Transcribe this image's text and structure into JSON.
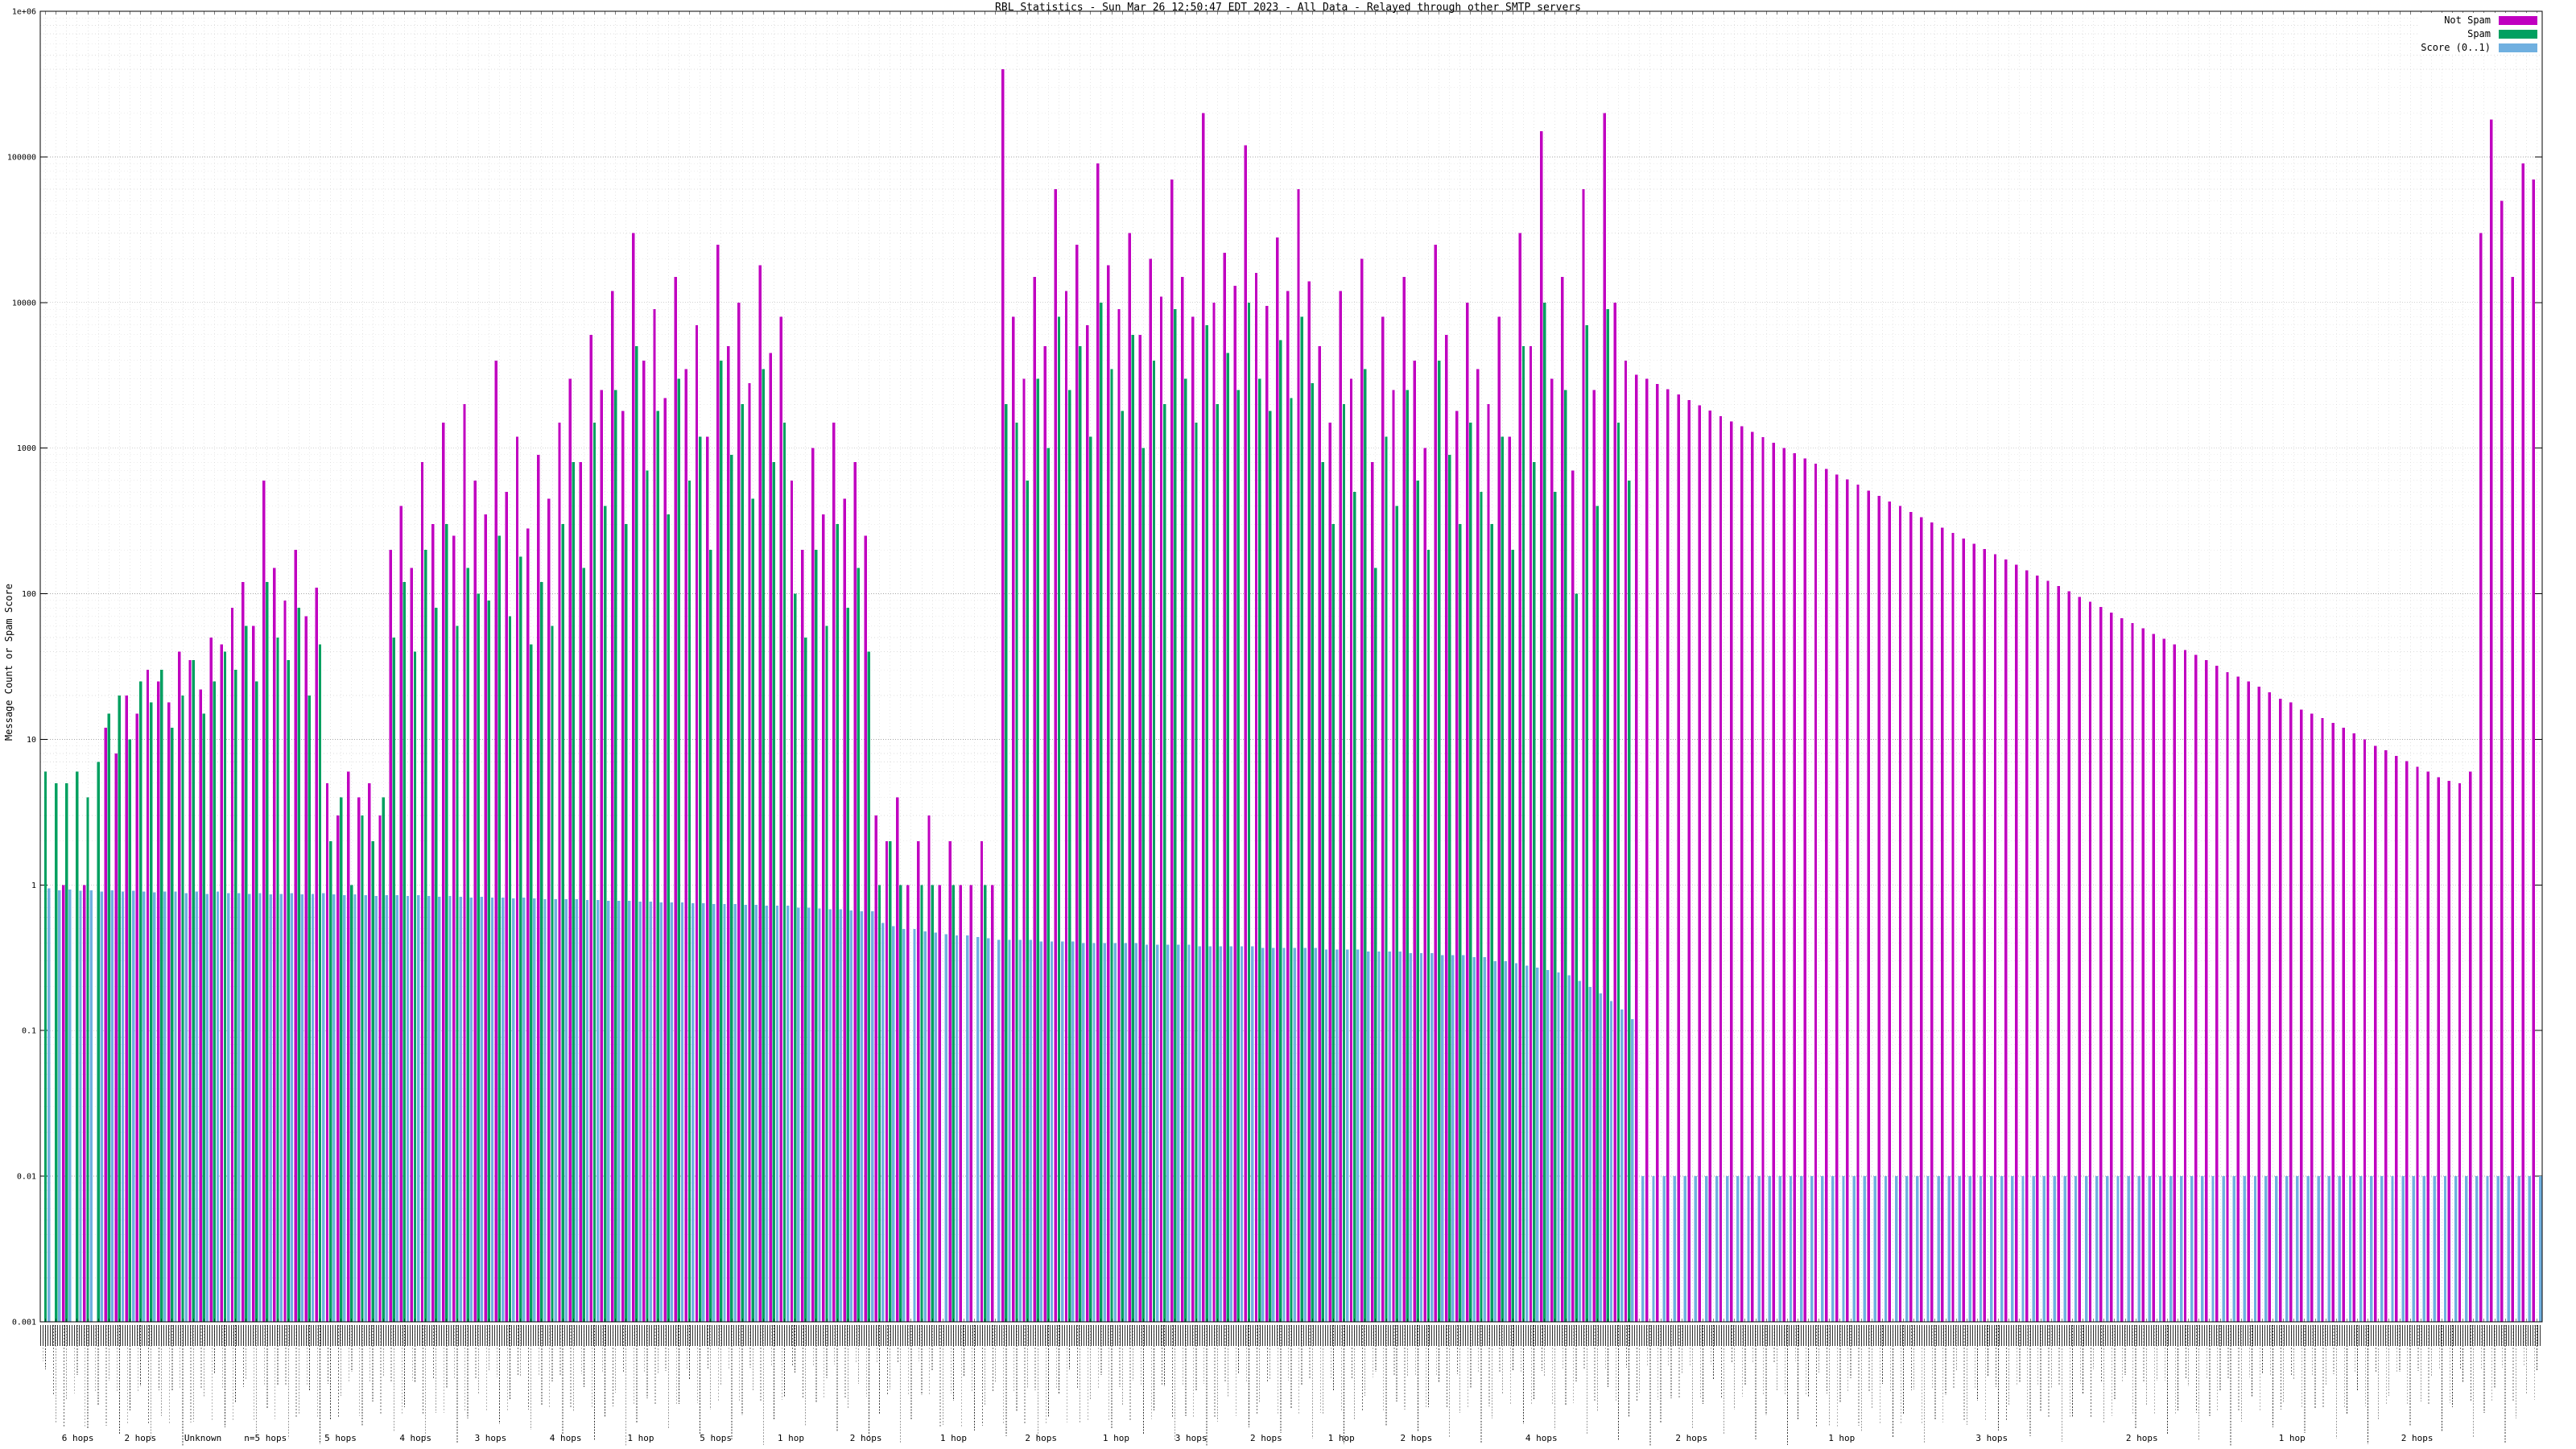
{
  "title": "RBL Statistics - Sun Mar 26 12:50:47 EDT 2023 - All Data - Relayed through other SMTP servers",
  "chart_data": {
    "type": "bar",
    "scale": "log",
    "title": "RBL Statistics - Sun Mar 26 12:50:47 EDT 2023 - All Data - Relayed through other SMTP servers",
    "xlabel": "",
    "ylabel": "Message Count or Spam Score",
    "ylim": [
      0.001,
      1000000
    ],
    "grid": true,
    "legend_position": "top-right",
    "x_tick_labels_legible": false,
    "ytick_labels": [
      "0.001",
      "0.01",
      "0.1",
      "1",
      "10",
      "100",
      "1000",
      "10000",
      "100000",
      "1e+06"
    ],
    "legend": [
      {
        "name": "Not Spam",
        "color": "#c000c0"
      },
      {
        "name": "Spam",
        "color": "#00a060"
      },
      {
        "name": "Score (0..1)",
        "color": "#70b0e0"
      }
    ],
    "series_order": [
      "not_spam",
      "spam",
      "score"
    ],
    "bars": [
      [
        0,
        6,
        0.95
      ],
      [
        0,
        5,
        0.92
      ],
      [
        1,
        5,
        0.93
      ],
      [
        0,
        6,
        0.91
      ],
      [
        1,
        4,
        0.92
      ],
      [
        0,
        7,
        0.9
      ],
      [
        12,
        15,
        0.92
      ],
      [
        8,
        20,
        0.9
      ],
      [
        20,
        10,
        0.91
      ],
      [
        15,
        25,
        0.9
      ],
      [
        30,
        18,
        0.89
      ],
      [
        25,
        30,
        0.9
      ],
      [
        18,
        12,
        0.9
      ],
      [
        40,
        20,
        0.88
      ],
      [
        35,
        35,
        0.9
      ],
      [
        22,
        15,
        0.87
      ],
      [
        50,
        25,
        0.9
      ],
      [
        45,
        40,
        0.88
      ],
      [
        80,
        30,
        0.88
      ],
      [
        120,
        60,
        0.87
      ],
      [
        60,
        25,
        0.88
      ],
      [
        600,
        120,
        0.86
      ],
      [
        150,
        50,
        0.87
      ],
      [
        90,
        35,
        0.88
      ],
      [
        200,
        80,
        0.86
      ],
      [
        70,
        20,
        0.87
      ],
      [
        110,
        45,
        0.88
      ],
      [
        5,
        2,
        0.86
      ],
      [
        3,
        4,
        0.85
      ],
      [
        6,
        1,
        0.86
      ],
      [
        4,
        3,
        0.85
      ],
      [
        5,
        2,
        0.84
      ],
      [
        3,
        4,
        0.85
      ],
      [
        200,
        50,
        0.85
      ],
      [
        400,
        120,
        0.84
      ],
      [
        150,
        40,
        0.85
      ],
      [
        800,
        200,
        0.84
      ],
      [
        300,
        80,
        0.83
      ],
      [
        1500,
        300,
        0.84
      ],
      [
        250,
        60,
        0.83
      ],
      [
        2000,
        150,
        0.82
      ],
      [
        600,
        100,
        0.83
      ],
      [
        350,
        90,
        0.82
      ],
      [
        4000,
        250,
        0.82
      ],
      [
        500,
        70,
        0.81
      ],
      [
        1200,
        180,
        0.82
      ],
      [
        280,
        45,
        0.81
      ],
      [
        900,
        120,
        0.8
      ],
      [
        450,
        60,
        0.8
      ],
      [
        1500,
        300,
        0.8
      ],
      [
        3000,
        800,
        0.8
      ],
      [
        800,
        150,
        0.79
      ],
      [
        6000,
        1500,
        0.79
      ],
      [
        2500,
        400,
        0.78
      ],
      [
        12000,
        2500,
        0.78
      ],
      [
        1800,
        300,
        0.78
      ],
      [
        30000,
        5000,
        0.77
      ],
      [
        4000,
        700,
        0.77
      ],
      [
        9000,
        1800,
        0.76
      ],
      [
        2200,
        350,
        0.76
      ],
      [
        15000,
        3000,
        0.76
      ],
      [
        3500,
        600,
        0.75
      ],
      [
        7000,
        1200,
        0.75
      ],
      [
        1200,
        200,
        0.74
      ],
      [
        25000,
        4000,
        0.74
      ],
      [
        5000,
        900,
        0.74
      ],
      [
        10000,
        2000,
        0.73
      ],
      [
        2800,
        450,
        0.73
      ],
      [
        18000,
        3500,
        0.72
      ],
      [
        4500,
        800,
        0.72
      ],
      [
        8000,
        1500,
        0.72
      ],
      [
        600,
        100,
        0.7
      ],
      [
        200,
        50,
        0.7
      ],
      [
        1000,
        200,
        0.69
      ],
      [
        350,
        60,
        0.68
      ],
      [
        1500,
        300,
        0.68
      ],
      [
        450,
        80,
        0.67
      ],
      [
        800,
        150,
        0.66
      ],
      [
        250,
        40,
        0.66
      ],
      [
        3,
        1,
        0.55
      ],
      [
        2,
        2,
        0.52
      ],
      [
        4,
        1,
        0.5
      ],
      [
        1,
        0,
        0.5
      ],
      [
        2,
        1,
        0.48
      ],
      [
        3,
        1,
        0.47
      ],
      [
        1,
        0,
        0.46
      ],
      [
        2,
        1,
        0.45
      ],
      [
        1,
        0,
        0.45
      ],
      [
        1,
        0,
        0.44
      ],
      [
        2,
        1,
        0.43
      ],
      [
        1,
        0,
        0.42
      ],
      [
        400000,
        2000,
        0.42
      ],
      [
        8000,
        1500,
        0.42
      ],
      [
        3000,
        600,
        0.42
      ],
      [
        15000,
        3000,
        0.41
      ],
      [
        5000,
        1000,
        0.41
      ],
      [
        60000,
        8000,
        0.41
      ],
      [
        12000,
        2500,
        0.41
      ],
      [
        25000,
        5000,
        0.4
      ],
      [
        7000,
        1200,
        0.4
      ],
      [
        90000,
        10000,
        0.4
      ],
      [
        18000,
        3500,
        0.4
      ],
      [
        9000,
        1800,
        0.4
      ],
      [
        30000,
        6000,
        0.4
      ],
      [
        6000,
        1000,
        0.39
      ],
      [
        20000,
        4000,
        0.39
      ],
      [
        11000,
        2000,
        0.39
      ],
      [
        70000,
        9000,
        0.39
      ],
      [
        15000,
        3000,
        0.39
      ],
      [
        8000,
        1500,
        0.38
      ],
      [
        200000,
        7000,
        0.38
      ],
      [
        10000,
        2000,
        0.38
      ],
      [
        22000,
        4500,
        0.38
      ],
      [
        13000,
        2500,
        0.38
      ],
      [
        120000,
        10000,
        0.38
      ],
      [
        16000,
        3000,
        0.37
      ],
      [
        9500,
        1800,
        0.37
      ],
      [
        28000,
        5500,
        0.37
      ],
      [
        12000,
        2200,
        0.37
      ],
      [
        60000,
        8000,
        0.37
      ],
      [
        14000,
        2800,
        0.37
      ],
      [
        5000,
        800,
        0.36
      ],
      [
        1500,
        300,
        0.36
      ],
      [
        12000,
        2000,
        0.36
      ],
      [
        3000,
        500,
        0.36
      ],
      [
        20000,
        3500,
        0.35
      ],
      [
        800,
        150,
        0.35
      ],
      [
        8000,
        1200,
        0.35
      ],
      [
        2500,
        400,
        0.35
      ],
      [
        15000,
        2500,
        0.34
      ],
      [
        4000,
        600,
        0.34
      ],
      [
        1000,
        200,
        0.34
      ],
      [
        25000,
        4000,
        0.33
      ],
      [
        6000,
        900,
        0.33
      ],
      [
        1800,
        300,
        0.33
      ],
      [
        10000,
        1500,
        0.32
      ],
      [
        3500,
        500,
        0.32
      ],
      [
        2000,
        300,
        0.3
      ],
      [
        8000,
        1200,
        0.3
      ],
      [
        1200,
        200,
        0.29
      ],
      [
        30000,
        5000,
        0.28
      ],
      [
        5000,
        800,
        0.27
      ],
      [
        150000,
        10000,
        0.26
      ],
      [
        3000,
        500,
        0.25
      ],
      [
        15000,
        2500,
        0.24
      ],
      [
        700,
        100,
        0.22
      ],
      [
        60000,
        7000,
        0.2
      ],
      [
        2500,
        400,
        0.18
      ],
      [
        200000,
        9000,
        0.16
      ],
      [
        10000,
        1500,
        0.14
      ],
      [
        4000,
        600,
        0.12
      ],
      [
        3200,
        0,
        0.01
      ],
      [
        3000,
        0,
        0.01
      ],
      [
        2760,
        0,
        0.01
      ],
      [
        2540,
        0,
        0.01
      ],
      [
        2330,
        0,
        0.01
      ],
      [
        2140,
        0,
        0.01
      ],
      [
        1970,
        0,
        0.01
      ],
      [
        1810,
        0,
        0.01
      ],
      [
        1660,
        0,
        0.01
      ],
      [
        1530,
        0,
        0.01
      ],
      [
        1410,
        0,
        0.01
      ],
      [
        1290,
        0,
        0.01
      ],
      [
        1190,
        0,
        0.01
      ],
      [
        1090,
        0,
        0.01
      ],
      [
        1000,
        0,
        0.01
      ],
      [
        920,
        0,
        0.01
      ],
      [
        850,
        0,
        0.01
      ],
      [
        780,
        0,
        0.01
      ],
      [
        720,
        0,
        0.01
      ],
      [
        660,
        0,
        0.01
      ],
      [
        610,
        0,
        0.01
      ],
      [
        560,
        0,
        0.01
      ],
      [
        510,
        0,
        0.01
      ],
      [
        470,
        0,
        0.01
      ],
      [
        430,
        0,
        0.01
      ],
      [
        400,
        0,
        0.01
      ],
      [
        365,
        0,
        0.01
      ],
      [
        336,
        0,
        0.01
      ],
      [
        309,
        0,
        0.01
      ],
      [
        284,
        0,
        0.01
      ],
      [
        261,
        0,
        0.01
      ],
      [
        240,
        0,
        0.01
      ],
      [
        221,
        0,
        0.01
      ],
      [
        203,
        0,
        0.01
      ],
      [
        187,
        0,
        0.01
      ],
      [
        172,
        0,
        0.01
      ],
      [
        158,
        0,
        0.01
      ],
      [
        145,
        0,
        0.01
      ],
      [
        133,
        0,
        0.01
      ],
      [
        123,
        0,
        0.01
      ],
      [
        113,
        0,
        0.01
      ],
      [
        104,
        0,
        0.01
      ],
      [
        95,
        0,
        0.01
      ],
      [
        88,
        0,
        0.01
      ],
      [
        81,
        0,
        0.01
      ],
      [
        74,
        0,
        0.01
      ],
      [
        68,
        0,
        0.01
      ],
      [
        63,
        0,
        0.01
      ],
      [
        58,
        0,
        0.01
      ],
      [
        53,
        0,
        0.01
      ],
      [
        49,
        0,
        0.01
      ],
      [
        45,
        0,
        0.01
      ],
      [
        41,
        0,
        0.01
      ],
      [
        38,
        0,
        0.01
      ],
      [
        35,
        0,
        0.01
      ],
      [
        32,
        0,
        0.01
      ],
      [
        29,
        0,
        0.01
      ],
      [
        27,
        0,
        0.01
      ],
      [
        25,
        0,
        0.01
      ],
      [
        23,
        0,
        0.01
      ],
      [
        21,
        0,
        0.01
      ],
      [
        19,
        0,
        0.01
      ],
      [
        18,
        0,
        0.01
      ],
      [
        16,
        0,
        0.01
      ],
      [
        15,
        0,
        0.01
      ],
      [
        14,
        0,
        0.01
      ],
      [
        13,
        0,
        0.01
      ],
      [
        12,
        0,
        0.01
      ],
      [
        11,
        0,
        0.01
      ],
      [
        10,
        0,
        0.01
      ],
      [
        9,
        0,
        0.01
      ],
      [
        8.4,
        0,
        0.01
      ],
      [
        7.7,
        0,
        0.01
      ],
      [
        7.1,
        0,
        0.01
      ],
      [
        6.5,
        0,
        0.01
      ],
      [
        6,
        0,
        0.01
      ],
      [
        5.5,
        0,
        0.01
      ],
      [
        5.2,
        0,
        0.01
      ],
      [
        5,
        0,
        0.01
      ],
      [
        6,
        0,
        0.01
      ],
      [
        30000,
        0,
        0.01
      ],
      [
        180000,
        0,
        0.01
      ],
      [
        50000,
        0,
        0.01
      ],
      [
        15000,
        0,
        0.01
      ],
      [
        90000,
        0,
        0.01
      ],
      [
        70000,
        0,
        0.01
      ]
    ],
    "group_labels": [
      {
        "p": 1.5,
        "t": "6 hops"
      },
      {
        "p": 4,
        "t": "2 hops"
      },
      {
        "p": 6.5,
        "t": "Unknown"
      },
      {
        "p": 9,
        "t": "n=5 hops"
      },
      {
        "p": 12,
        "t": "5 hops"
      },
      {
        "p": 15,
        "t": "4 hops"
      },
      {
        "p": 18,
        "t": "3 hops"
      },
      {
        "p": 21,
        "t": "4 hops"
      },
      {
        "p": 24,
        "t": "1 hop"
      },
      {
        "p": 27,
        "t": "5 hops"
      },
      {
        "p": 30,
        "t": "1 hop"
      },
      {
        "p": 33,
        "t": "2 hops"
      },
      {
        "p": 36.5,
        "t": "1 hop"
      },
      {
        "p": 40,
        "t": "2 hops"
      },
      {
        "p": 43,
        "t": "1 hop"
      },
      {
        "p": 46,
        "t": "3 hops"
      },
      {
        "p": 49,
        "t": "2 hops"
      },
      {
        "p": 52,
        "t": "1 hop"
      },
      {
        "p": 55,
        "t": "2 hops"
      },
      {
        "p": 60,
        "t": "4 hops"
      },
      {
        "p": 66,
        "t": "2 hops"
      },
      {
        "p": 72,
        "t": "1 hop"
      },
      {
        "p": 78,
        "t": "3 hops"
      },
      {
        "p": 84,
        "t": "2 hops"
      },
      {
        "p": 90,
        "t": "1 hop"
      },
      {
        "p": 95,
        "t": "2 hops"
      }
    ]
  }
}
